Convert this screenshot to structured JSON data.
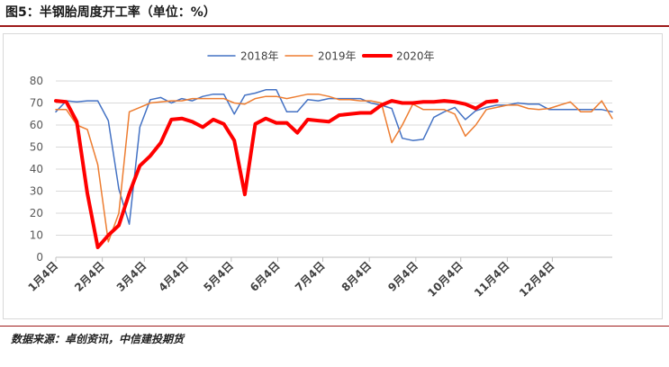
{
  "figure": {
    "title": "图5：半钢胎周度开工率（单位：%）",
    "source": "数据来源：卓创资讯，中信建投期货"
  },
  "chart_data": {
    "type": "line",
    "title": "",
    "xlabel": "",
    "ylabel": "",
    "ylim": [
      0,
      80
    ],
    "yticks": [
      0,
      10,
      20,
      30,
      40,
      50,
      60,
      70,
      80
    ],
    "grid": "horizontal",
    "legend_position": "top",
    "x_tick_labels": [
      "1月4日",
      "2月4日",
      "3月4日",
      "4月4日",
      "5月4日",
      "6月4日",
      "7月4日",
      "8月4日",
      "9月4日",
      "10月4日",
      "11月4日",
      "12月4日"
    ],
    "x_tick_weeks": [
      0,
      4.43,
      8.43,
      12.43,
      16.71,
      21.14,
      25.43,
      29.86,
      34.29,
      38.57,
      43.0,
      47.29
    ],
    "x_max_week": 53,
    "series": [
      {
        "name": "2018年",
        "color": "#4472c4",
        "width": 1.5,
        "x": [
          0,
          1,
          2,
          3,
          4,
          5,
          6,
          7,
          8,
          9,
          10,
          11,
          12,
          13,
          14,
          15,
          16,
          17,
          18,
          19,
          20,
          21,
          22,
          23,
          24,
          25,
          26,
          27,
          28,
          29,
          30,
          31,
          32,
          33,
          34,
          35,
          36,
          37,
          38,
          39,
          40,
          41,
          42,
          43,
          44,
          45,
          46,
          47,
          48,
          49,
          50,
          51,
          52,
          53
        ],
        "values": [
          66,
          71,
          70.5,
          71,
          71,
          62,
          31,
          15,
          59,
          71.5,
          72.5,
          70,
          72,
          71,
          73,
          74,
          74,
          65,
          73.5,
          74.5,
          76,
          76,
          66,
          66,
          71.5,
          71,
          72,
          72,
          72,
          72,
          70,
          69,
          67.5,
          54,
          53,
          53.5,
          63.5,
          66,
          68,
          62.5,
          66.5,
          68,
          69,
          69,
          70,
          69.5,
          69.5,
          67,
          67,
          67,
          67,
          67,
          67,
          66
        ]
      },
      {
        "name": "2019年",
        "color": "#ed7d31",
        "width": 1.5,
        "x": [
          0,
          1,
          2,
          3,
          4,
          5,
          6,
          7,
          8,
          9,
          10,
          11,
          12,
          13,
          14,
          15,
          16,
          17,
          18,
          19,
          20,
          21,
          22,
          23,
          24,
          25,
          26,
          27,
          28,
          29,
          30,
          31,
          32,
          33,
          34,
          35,
          36,
          37,
          38,
          39,
          40,
          41,
          42,
          43,
          44,
          45,
          46,
          47,
          48,
          49,
          50,
          51,
          52,
          53
        ],
        "values": [
          67,
          67,
          60,
          58,
          42,
          7,
          20,
          66,
          68,
          70,
          70.5,
          71,
          71,
          72,
          72,
          72,
          72,
          70,
          69.5,
          72,
          73,
          73,
          72,
          73,
          74,
          74,
          73,
          71.5,
          71.5,
          71,
          71,
          70,
          52,
          60,
          69.5,
          67,
          67,
          67,
          65,
          55,
          60,
          67,
          68,
          69,
          69,
          67.5,
          67,
          67.5,
          69,
          70.5,
          66,
          66,
          71,
          63
        ]
      },
      {
        "name": "2020年",
        "color": "#ff0000",
        "width": 4,
        "x": [
          0,
          1,
          2,
          3,
          4,
          5,
          6,
          7,
          8,
          9,
          10,
          11,
          12,
          13,
          14,
          15,
          16,
          17,
          18,
          19,
          20,
          21,
          22,
          23,
          24,
          25,
          26,
          27,
          28,
          29,
          30,
          31,
          32,
          33,
          34,
          35,
          36,
          37,
          38,
          39,
          40,
          41,
          42,
          43,
          44
        ],
        "values": [
          71,
          70.5,
          61.5,
          29,
          4.5,
          10,
          14.5,
          29,
          41.5,
          46,
          52,
          62.5,
          63,
          61.5,
          59,
          62.5,
          60.5,
          53,
          28.5,
          60.5,
          63,
          61,
          61,
          56.5,
          62.5,
          62,
          61.5,
          64.5,
          65,
          65.5,
          65.5,
          69,
          71,
          70,
          70,
          70.5,
          70.5,
          71,
          70.5,
          69.5,
          67.5,
          70.5,
          71,
          null,
          null
        ]
      }
    ]
  }
}
